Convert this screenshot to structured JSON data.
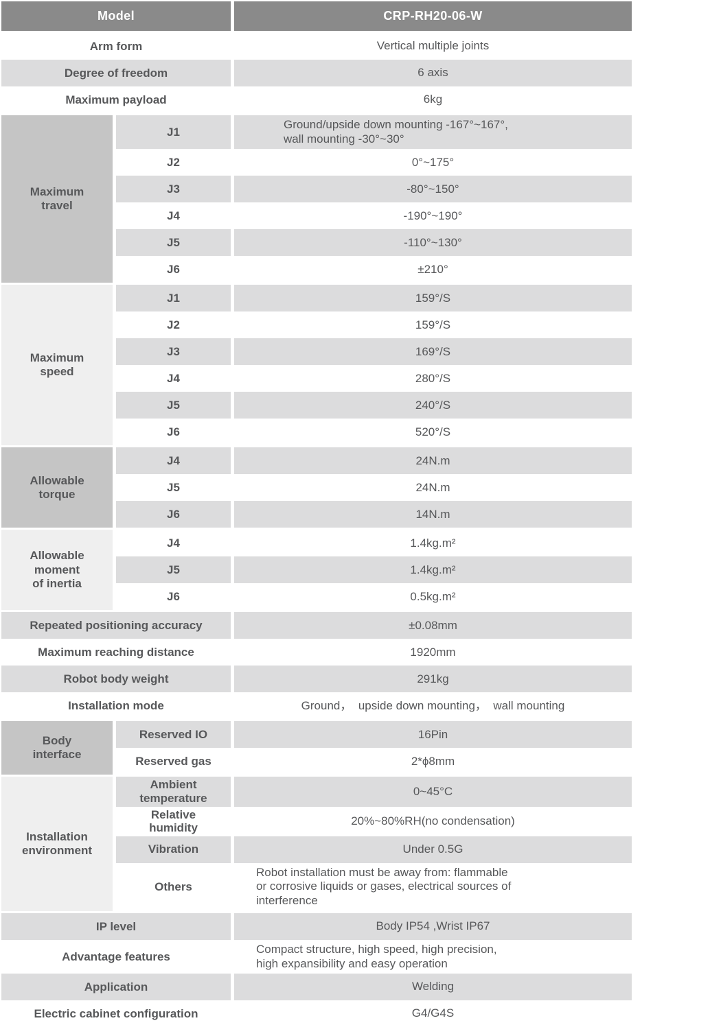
{
  "colors": {
    "header_bg": "#8a8a8a",
    "header_text": "#ffffff",
    "row_stripe": "#dcdcdd",
    "group_cell_dark": "#c5c5c5",
    "group_cell_light": "#efefef",
    "text": "#57585a"
  },
  "header": {
    "label": "Model",
    "value": "CRP-RH20-06-W"
  },
  "sections": [
    {
      "name": "general",
      "rows": [
        {
          "label": "Arm form",
          "value": "Vertical multiple joints",
          "shade": "white"
        },
        {
          "label": "Degree of freedom",
          "value": "6 axis",
          "shade": "gray"
        },
        {
          "label": "Maximum payload",
          "value": "6kg",
          "shade": "white"
        }
      ]
    },
    {
      "name": "maximum-travel",
      "group": "Maximum\ntravel",
      "group_shade": "dark",
      "rows": [
        {
          "label": "J1",
          "value": "Ground/upside down mounting -167°~167°,\nwall mounting -30°~30°",
          "shade": "gray",
          "align": "left-lg"
        },
        {
          "label": "J2",
          "value": "0°~175°",
          "shade": "white"
        },
        {
          "label": "J3",
          "value": "-80°~150°",
          "shade": "gray"
        },
        {
          "label": "J4",
          "value": "-190°~190°",
          "shade": "white"
        },
        {
          "label": "J5",
          "value": "-110°~130°",
          "shade": "gray"
        },
        {
          "label": "J6",
          "value": "±210°",
          "shade": "white"
        }
      ]
    },
    {
      "name": "maximum-speed",
      "group": "Maximum\nspeed",
      "group_shade": "light",
      "rows": [
        {
          "label": "J1",
          "value": "159°/S",
          "shade": "gray"
        },
        {
          "label": "J2",
          "value": "159°/S",
          "shade": "white"
        },
        {
          "label": "J3",
          "value": "169°/S",
          "shade": "gray"
        },
        {
          "label": "J4",
          "value": "280°/S",
          "shade": "white"
        },
        {
          "label": "J5",
          "value": "240°/S",
          "shade": "gray"
        },
        {
          "label": "J6",
          "value": "520°/S",
          "shade": "white"
        }
      ]
    },
    {
      "name": "allowable-torque",
      "group": "Allowable\ntorque",
      "group_shade": "dark",
      "rows": [
        {
          "label": "J4",
          "value": "24N.m",
          "shade": "gray"
        },
        {
          "label": "J5",
          "value": "24N.m",
          "shade": "white"
        },
        {
          "label": "J6",
          "value": "14N.m",
          "shade": "gray"
        }
      ]
    },
    {
      "name": "allowable-moment-of-inertia",
      "group": "Allowable\nmoment\nof inertia",
      "group_shade": "light",
      "rows": [
        {
          "label": "J4",
          "value": "1.4kg.m²",
          "shade": "white"
        },
        {
          "label": "J5",
          "value": "1.4kg.m²",
          "shade": "gray"
        },
        {
          "label": "J6",
          "value": "0.5kg.m²",
          "shade": "white"
        }
      ]
    },
    {
      "name": "body-specs",
      "rows": [
        {
          "label": "Repeated positioning accuracy",
          "value": "±0.08mm",
          "shade": "gray"
        },
        {
          "label": "Maximum reaching distance",
          "value": "1920mm",
          "shade": "white"
        },
        {
          "label": "Robot body weight",
          "value": "291kg",
          "shade": "gray"
        },
        {
          "label": "Installation mode",
          "value": "Ground，  upside down mounting，  wall mounting",
          "shade": "white"
        }
      ]
    },
    {
      "name": "body-interface",
      "group": "Body\ninterface",
      "group_shade": "dark",
      "rows": [
        {
          "label": "Reserved IO",
          "value": "16Pin",
          "shade": "gray"
        },
        {
          "label": "Reserved gas",
          "value": "2*ϕ8mm",
          "shade": "white"
        }
      ]
    },
    {
      "name": "installation-environment",
      "group": "Installation\nenvironment",
      "group_shade": "light",
      "rows": [
        {
          "label": "Ambient\ntemperature",
          "value": "0~45°C",
          "shade": "gray"
        },
        {
          "label": "Relative\nhumidity",
          "value": "20%~80%RH(no condensation)",
          "shade": "white"
        },
        {
          "label": "Vibration",
          "value": "Under 0.5G",
          "shade": "gray"
        },
        {
          "label": "Others",
          "value": "Robot installation must be away from: flammable\nor corrosive liquids or gases, electrical sources of\ninterference",
          "shade": "white",
          "align": "left"
        }
      ]
    },
    {
      "name": "features",
      "rows": [
        {
          "label": "IP level",
          "value": "Body IP54 ,Wrist IP67",
          "shade": "gray"
        },
        {
          "label": "Advantage features",
          "value": "Compact structure, high speed, high precision,\nhigh expansibility and easy operation",
          "shade": "white",
          "align": "left"
        },
        {
          "label": "Application",
          "value": "Welding",
          "shade": "gray"
        },
        {
          "label": "Electric cabinet configuration",
          "value": "G4/G4S",
          "shade": "white"
        }
      ]
    }
  ]
}
